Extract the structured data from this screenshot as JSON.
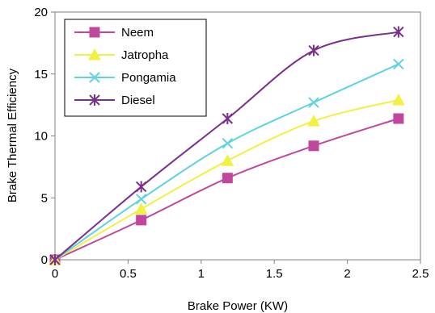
{
  "chart_data": {
    "type": "line",
    "xlabel": "Brake Power (KW)",
    "ylabel": "Brake Thermal Efficiency",
    "xlim": [
      0,
      2.5
    ],
    "ylim": [
      0,
      20
    ],
    "xticks": [
      "0",
      "0.5",
      "1",
      "1.5",
      "2",
      "2.5"
    ],
    "yticks": [
      "0",
      "5",
      "10",
      "15",
      "20"
    ],
    "grid": false,
    "legend_position": "top-left",
    "x": [
      0,
      0.59,
      1.18,
      1.77,
      2.35
    ],
    "series": [
      {
        "name": "Neem",
        "color": "#c0479e",
        "marker": "square",
        "values": [
          0,
          3.2,
          6.6,
          9.2,
          11.4
        ]
      },
      {
        "name": "Jatropha",
        "color": "#f2f040",
        "marker": "triangle",
        "values": [
          0,
          4.1,
          8.0,
          11.2,
          12.9
        ]
      },
      {
        "name": "Pongamia",
        "color": "#5fd3e0",
        "marker": "x",
        "values": [
          0,
          4.9,
          9.4,
          12.7,
          15.8
        ]
      },
      {
        "name": "Diesel",
        "color": "#7b2f8c",
        "marker": "asterisk",
        "values": [
          0,
          5.9,
          11.4,
          16.9,
          18.4
        ]
      }
    ]
  }
}
